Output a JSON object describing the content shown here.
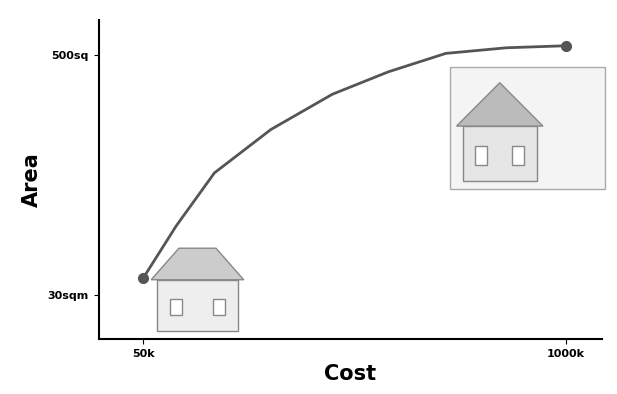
{
  "chart_data": {
    "type": "line",
    "x_label": "Cost",
    "y_label": "Area",
    "x": [
      50000,
      124000,
      210000,
      337000,
      475000,
      601000,
      730000,
      866000,
      1000000
    ],
    "values": [
      64,
      166,
      270,
      355,
      424,
      468,
      504,
      515,
      519
    ],
    "color": "#555555",
    "marker": "o",
    "line_style": "solid",
    "xlim": [
      -50000,
      1080000
    ],
    "xticks": [
      {
        "value": 50000,
        "label": "50k"
      },
      {
        "value": 1000000,
        "label": "1000k"
      }
    ],
    "ylim": [
      -55,
      570
    ],
    "yticks": [
      {
        "value": 30,
        "label": "30sqm"
      },
      {
        "value": 500,
        "label": "500sq"
      }
    ],
    "grid": false
  }
}
